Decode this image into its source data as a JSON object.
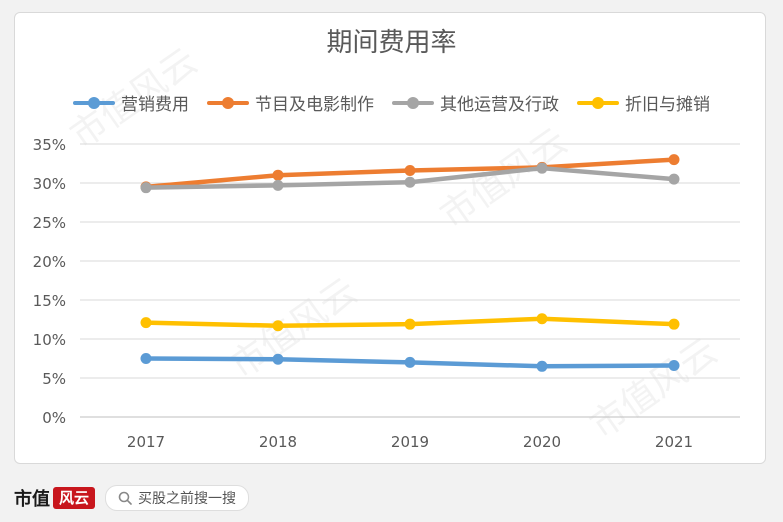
{
  "chart_data": {
    "type": "line",
    "title": "期间费用率",
    "categories": [
      "2017",
      "2018",
      "2019",
      "2020",
      "2021"
    ],
    "ylim": [
      0,
      0.35
    ],
    "yticks": [
      "0%",
      "5%",
      "10%",
      "15%",
      "20%",
      "25%",
      "30%",
      "35%"
    ],
    "grid": true,
    "legend_position": "top",
    "series": [
      {
        "name": "营销费用",
        "color": "#5b9bd5",
        "values": [
          0.075,
          0.074,
          0.07,
          0.065,
          0.066
        ]
      },
      {
        "name": "节目及电影制作",
        "color": "#ed7d31",
        "values": [
          0.295,
          0.31,
          0.316,
          0.32,
          0.33
        ]
      },
      {
        "name": "其他运营及行政",
        "color": "#a5a5a5",
        "values": [
          0.294,
          0.297,
          0.301,
          0.319,
          0.305
        ]
      },
      {
        "name": "折旧与摊销",
        "color": "#ffc000",
        "values": [
          0.121,
          0.117,
          0.119,
          0.126,
          0.119
        ]
      }
    ]
  },
  "watermark": "市值风云",
  "footer": {
    "brand_text": "市值",
    "brand_tag": "风云",
    "search_text": "买股之前搜一搜",
    "search_icon": "search-icon"
  }
}
